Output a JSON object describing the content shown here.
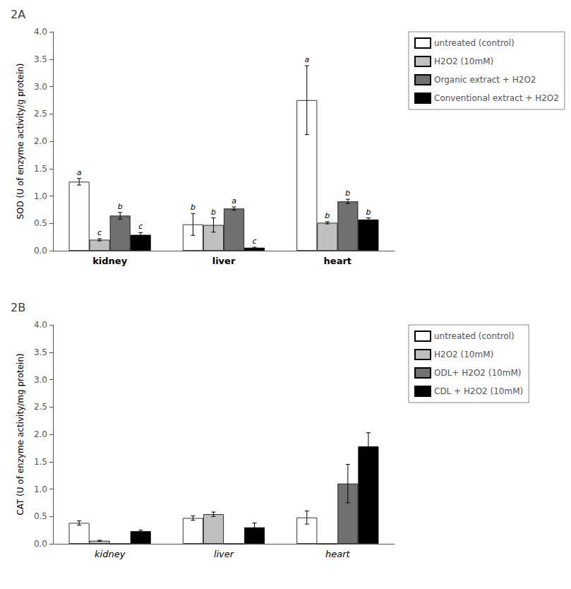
{
  "chart_data": [
    {
      "type": "bar",
      "title": "2A",
      "y_label": "SOD (U of enzyme activity/g protein)",
      "categories": [
        "kidney",
        "liver",
        "heart"
      ],
      "series": [
        {
          "name": "untreated (control)",
          "color": "#ffffff",
          "values": [
            1.26,
            0.48,
            2.75
          ],
          "errors": [
            0.06,
            0.2,
            0.63
          ],
          "letters": [
            "a",
            "b",
            "a"
          ]
        },
        {
          "name": "H2O2 (10mM)",
          "color": "#c0c0c0",
          "values": [
            0.2,
            0.47,
            0.51
          ],
          "errors": [
            0.02,
            0.13,
            0.02
          ],
          "letters": [
            "c",
            "b",
            "b"
          ]
        },
        {
          "name": "Organic extract + H2O2",
          "color": "#707070",
          "values": [
            0.64,
            0.77,
            0.9
          ],
          "errors": [
            0.06,
            0.03,
            0.04
          ],
          "letters": [
            "b",
            "a",
            "b"
          ]
        },
        {
          "name": "Conventional extract + H2O2",
          "color": "#000000",
          "values": [
            0.29,
            0.055,
            0.57
          ],
          "errors": [
            0.04,
            0.01,
            0.03
          ],
          "letters": [
            "c",
            "c",
            "b"
          ]
        }
      ],
      "ylim": [
        0,
        4.0
      ],
      "yticks": [
        {
          "value": 0.0,
          "label": "0.0"
        },
        {
          "value": 0.5,
          "label": "0.5"
        },
        {
          "value": 1.0,
          "label": "1.0"
        },
        {
          "value": 1.5,
          "label": "1.5"
        },
        {
          "value": 2.0,
          "label": "2.0"
        },
        {
          "value": 2.5,
          "label": "2.5"
        },
        {
          "value": 3.0,
          "label": "3.0"
        },
        {
          "value": 3.5,
          "label": "3.5"
        },
        {
          "value": 4.0,
          "label": "4.0"
        }
      ],
      "grid": false,
      "legend": "upper right"
    },
    {
      "type": "bar",
      "title": "2B",
      "y_label": "CAT (U of enzyme activity/mg protein)",
      "categories": [
        "kidney",
        "liver",
        "heart"
      ],
      "series": [
        {
          "name": "untreated (control)",
          "color": "#ffffff",
          "values": [
            0.38,
            0.47,
            0.48
          ],
          "errors": [
            0.04,
            0.04,
            0.12
          ]
        },
        {
          "name": "H2O2 (10mM)",
          "color": "#c0c0c0",
          "values": [
            0.055,
            0.54,
            0.0
          ],
          "errors": [
            0.01,
            0.04,
            0.0
          ]
        },
        {
          "name": "ODL+ H2O2 (10mM)",
          "color": "#707070",
          "values": [
            0.0,
            0.0,
            1.1
          ],
          "errors": [
            0.0,
            0.0,
            0.35
          ]
        },
        {
          "name": "CDL + H2O2 (10mM)",
          "color": "#000000",
          "values": [
            0.23,
            0.3,
            1.78
          ],
          "errors": [
            0.02,
            0.08,
            0.25
          ]
        }
      ],
      "ylim": [
        0,
        4.0
      ],
      "yticks": [
        {
          "value": 0.0,
          "label": "0.0"
        },
        {
          "value": 0.5,
          "label": "0.5"
        },
        {
          "value": 1.0,
          "label": "1.0"
        },
        {
          "value": 1.5,
          "label": "1.5"
        },
        {
          "value": 2.0,
          "label": "2.0"
        },
        {
          "value": 2.5,
          "label": "2.5"
        },
        {
          "value": 3.0,
          "label": "3.0"
        },
        {
          "value": 3.5,
          "label": "3.5"
        },
        {
          "value": 4.0,
          "label": "4.0"
        }
      ],
      "grid": false,
      "legend": "upper right"
    }
  ]
}
